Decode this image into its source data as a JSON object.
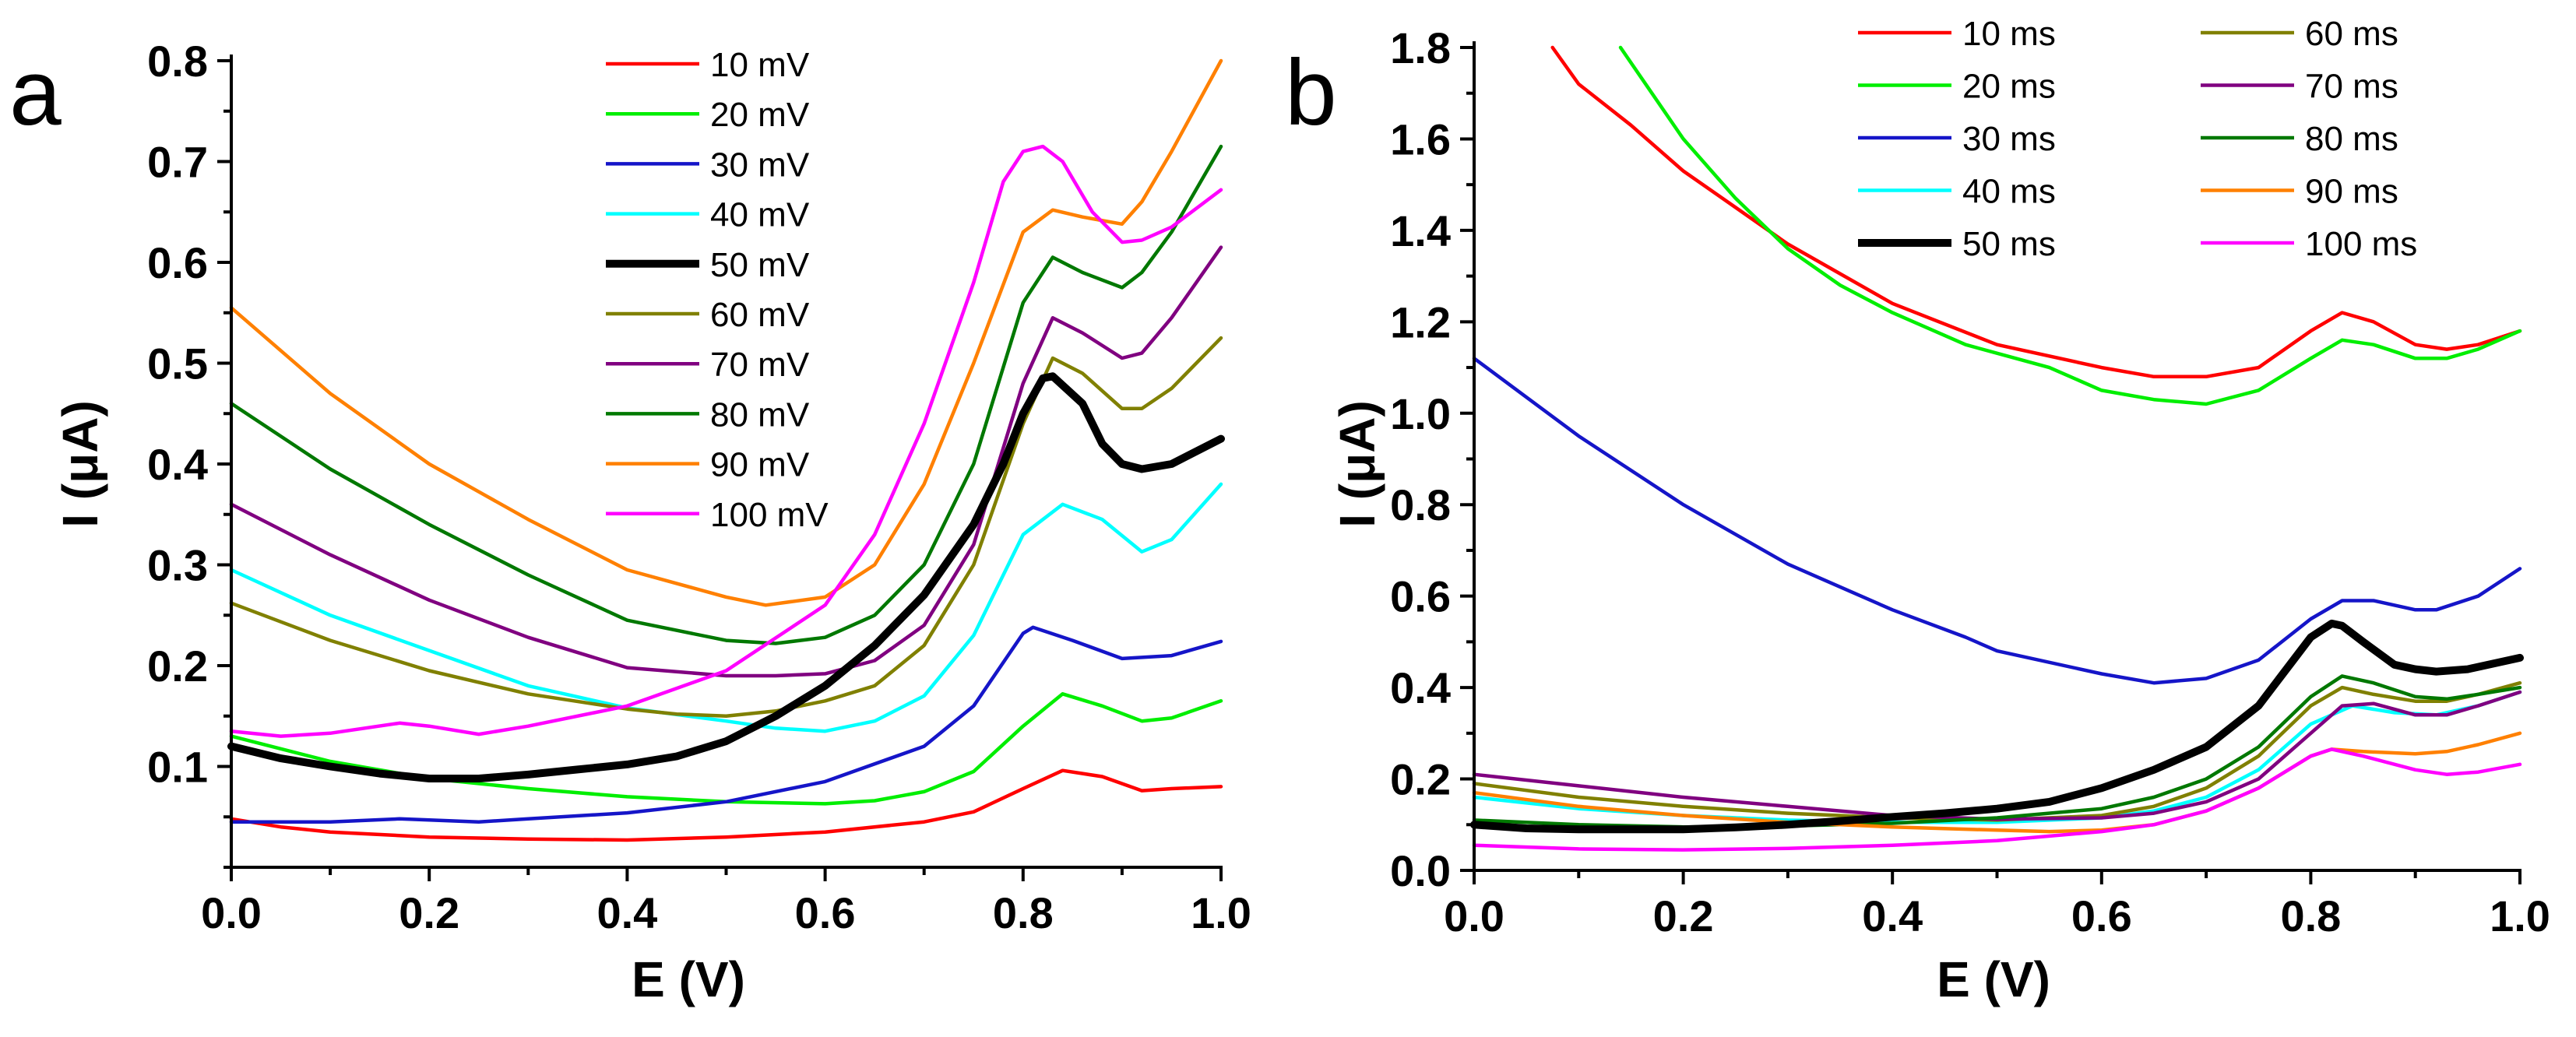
{
  "chart_data": [
    {
      "type": "line",
      "panel_label": "a",
      "xlabel": "E (V)",
      "ylabel": "I (μA)",
      "xlim": [
        0.0,
        1.0
      ],
      "ylim": [
        0.0,
        0.8
      ],
      "xticks": [
        0.0,
        0.2,
        0.4,
        0.6,
        0.8,
        1.0
      ],
      "xtick_labels": [
        "0.0",
        "0.2",
        "0.4",
        "0.6",
        "0.8",
        "1.0"
      ],
      "yticks": [
        0.1,
        0.2,
        0.3,
        0.4,
        0.5,
        0.6,
        0.7,
        0.8
      ],
      "ytick_labels": [
        "0.1",
        "0.2",
        "0.3",
        "0.4",
        "0.5",
        "0.6",
        "0.7",
        "0.8"
      ],
      "legend_position": "top-center",
      "series": [
        {
          "name": "10 mV",
          "color": "#ff0000",
          "bold": false,
          "x": [
            0,
            0.05,
            0.1,
            0.2,
            0.3,
            0.4,
            0.5,
            0.6,
            0.7,
            0.75,
            0.8,
            0.84,
            0.88,
            0.92,
            0.95,
            1.0
          ],
          "y": [
            0.048,
            0.04,
            0.035,
            0.03,
            0.028,
            0.027,
            0.03,
            0.035,
            0.045,
            0.055,
            0.078,
            0.096,
            0.09,
            0.076,
            0.078,
            0.08
          ]
        },
        {
          "name": "20 mV",
          "color": "#00ee00",
          "bold": false,
          "x": [
            0,
            0.1,
            0.2,
            0.3,
            0.4,
            0.5,
            0.6,
            0.65,
            0.7,
            0.75,
            0.8,
            0.84,
            0.88,
            0.92,
            0.95,
            1.0
          ],
          "y": [
            0.13,
            0.105,
            0.088,
            0.078,
            0.07,
            0.065,
            0.063,
            0.066,
            0.075,
            0.095,
            0.14,
            0.172,
            0.16,
            0.145,
            0.148,
            0.165
          ]
        },
        {
          "name": "30 mV",
          "color": "#1515c8",
          "bold": false,
          "x": [
            0,
            0.1,
            0.17,
            0.25,
            0.3,
            0.4,
            0.5,
            0.6,
            0.7,
            0.75,
            0.8,
            0.81,
            0.85,
            0.9,
            0.95,
            1.0
          ],
          "y": [
            0.045,
            0.045,
            0.048,
            0.045,
            0.048,
            0.054,
            0.065,
            0.085,
            0.12,
            0.16,
            0.232,
            0.238,
            0.225,
            0.207,
            0.21,
            0.224
          ]
        },
        {
          "name": "40 mV",
          "color": "#00ffff",
          "bold": false,
          "x": [
            0,
            0.1,
            0.2,
            0.3,
            0.4,
            0.5,
            0.55,
            0.6,
            0.65,
            0.7,
            0.75,
            0.8,
            0.84,
            0.88,
            0.92,
            0.95,
            1.0
          ],
          "y": [
            0.295,
            0.25,
            0.215,
            0.18,
            0.158,
            0.145,
            0.138,
            0.135,
            0.145,
            0.17,
            0.23,
            0.33,
            0.36,
            0.345,
            0.313,
            0.325,
            0.38
          ]
        },
        {
          "name": "50 mV",
          "color": "#000000",
          "bold": true,
          "x": [
            0,
            0.05,
            0.1,
            0.15,
            0.2,
            0.25,
            0.3,
            0.35,
            0.4,
            0.45,
            0.5,
            0.55,
            0.6,
            0.65,
            0.7,
            0.75,
            0.78,
            0.8,
            0.82,
            0.83,
            0.86,
            0.88,
            0.9,
            0.92,
            0.95,
            1.0
          ],
          "y": [
            0.12,
            0.108,
            0.1,
            0.093,
            0.088,
            0.088,
            0.092,
            0.097,
            0.102,
            0.11,
            0.125,
            0.15,
            0.18,
            0.22,
            0.27,
            0.34,
            0.4,
            0.45,
            0.485,
            0.487,
            0.46,
            0.42,
            0.4,
            0.395,
            0.4,
            0.425
          ]
        },
        {
          "name": "60 mV",
          "color": "#808000",
          "bold": false,
          "x": [
            0,
            0.1,
            0.2,
            0.3,
            0.4,
            0.45,
            0.5,
            0.55,
            0.6,
            0.65,
            0.7,
            0.75,
            0.8,
            0.83,
            0.86,
            0.9,
            0.92,
            0.95,
            1.0
          ],
          "y": [
            0.262,
            0.225,
            0.195,
            0.172,
            0.157,
            0.152,
            0.15,
            0.155,
            0.165,
            0.18,
            0.22,
            0.3,
            0.44,
            0.505,
            0.49,
            0.455,
            0.455,
            0.475,
            0.525
          ]
        },
        {
          "name": "70 mV",
          "color": "#800080",
          "bold": false,
          "x": [
            0,
            0.1,
            0.2,
            0.3,
            0.4,
            0.5,
            0.55,
            0.6,
            0.65,
            0.7,
            0.75,
            0.8,
            0.83,
            0.86,
            0.9,
            0.92,
            0.95,
            1.0
          ],
          "y": [
            0.36,
            0.31,
            0.265,
            0.228,
            0.198,
            0.19,
            0.19,
            0.192,
            0.205,
            0.24,
            0.32,
            0.48,
            0.545,
            0.53,
            0.505,
            0.51,
            0.545,
            0.615
          ]
        },
        {
          "name": "80 mV",
          "color": "#007800",
          "bold": false,
          "x": [
            0,
            0.1,
            0.2,
            0.3,
            0.4,
            0.5,
            0.55,
            0.6,
            0.65,
            0.7,
            0.75,
            0.8,
            0.83,
            0.86,
            0.9,
            0.92,
            0.95,
            1.0
          ],
          "y": [
            0.46,
            0.395,
            0.34,
            0.29,
            0.245,
            0.225,
            0.222,
            0.228,
            0.25,
            0.3,
            0.4,
            0.56,
            0.605,
            0.59,
            0.575,
            0.59,
            0.63,
            0.715
          ]
        },
        {
          "name": "90 mV",
          "color": "#ff8000",
          "bold": false,
          "x": [
            0,
            0.1,
            0.2,
            0.3,
            0.4,
            0.5,
            0.54,
            0.6,
            0.65,
            0.7,
            0.75,
            0.8,
            0.83,
            0.86,
            0.9,
            0.92,
            0.95,
            1.0
          ],
          "y": [
            0.555,
            0.47,
            0.4,
            0.345,
            0.295,
            0.268,
            0.26,
            0.268,
            0.3,
            0.38,
            0.5,
            0.63,
            0.652,
            0.645,
            0.638,
            0.66,
            0.71,
            0.8
          ]
        },
        {
          "name": "100 mV",
          "color": "#ff00ff",
          "bold": false,
          "x": [
            0,
            0.05,
            0.1,
            0.17,
            0.2,
            0.25,
            0.3,
            0.4,
            0.5,
            0.6,
            0.65,
            0.7,
            0.75,
            0.78,
            0.8,
            0.82,
            0.84,
            0.87,
            0.9,
            0.92,
            0.95,
            1.0
          ],
          "y": [
            0.135,
            0.13,
            0.133,
            0.143,
            0.14,
            0.132,
            0.14,
            0.16,
            0.195,
            0.26,
            0.33,
            0.44,
            0.58,
            0.68,
            0.71,
            0.715,
            0.7,
            0.65,
            0.62,
            0.622,
            0.635,
            0.672
          ]
        }
      ]
    },
    {
      "type": "line",
      "panel_label": "b",
      "xlabel": "E (V)",
      "ylabel": "I (μA)",
      "xlim": [
        0.0,
        1.0
      ],
      "ylim": [
        0.0,
        1.8
      ],
      "xticks": [
        0.0,
        0.2,
        0.4,
        0.6,
        0.8,
        1.0
      ],
      "xtick_labels": [
        "0.0",
        "0.2",
        "0.4",
        "0.6",
        "0.8",
        "1.0"
      ],
      "yticks": [
        0.0,
        0.2,
        0.4,
        0.6,
        0.8,
        1.0,
        1.2,
        1.4,
        1.6,
        1.8
      ],
      "ytick_labels": [
        "0.0",
        "0.2",
        "0.4",
        "0.6",
        "0.8",
        "1.0",
        "1.2",
        "1.4",
        "1.6",
        "1.8"
      ],
      "legend_position": "top-center",
      "series": [
        {
          "name": "10 ms",
          "color": "#ff0000",
          "bold": false,
          "x": [
            0.075,
            0.1,
            0.15,
            0.2,
            0.25,
            0.3,
            0.4,
            0.5,
            0.6,
            0.65,
            0.7,
            0.75,
            0.8,
            0.83,
            0.86,
            0.9,
            0.93,
            0.96,
            1.0
          ],
          "y": [
            1.8,
            1.72,
            1.63,
            1.53,
            1.45,
            1.37,
            1.24,
            1.15,
            1.1,
            1.08,
            1.08,
            1.1,
            1.18,
            1.22,
            1.2,
            1.15,
            1.14,
            1.15,
            1.18
          ]
        },
        {
          "name": "20 ms",
          "color": "#00ee00",
          "bold": false,
          "x": [
            0.14,
            0.2,
            0.25,
            0.3,
            0.35,
            0.4,
            0.47,
            0.55,
            0.6,
            0.65,
            0.7,
            0.75,
            0.8,
            0.83,
            0.86,
            0.9,
            0.93,
            0.96,
            1.0
          ],
          "y": [
            1.8,
            1.6,
            1.47,
            1.36,
            1.28,
            1.22,
            1.15,
            1.1,
            1.05,
            1.03,
            1.02,
            1.05,
            1.12,
            1.16,
            1.15,
            1.12,
            1.12,
            1.14,
            1.18
          ]
        },
        {
          "name": "30 ms",
          "color": "#1515c8",
          "bold": false,
          "x": [
            0,
            0.1,
            0.2,
            0.3,
            0.4,
            0.47,
            0.5,
            0.6,
            0.65,
            0.7,
            0.75,
            0.8,
            0.83,
            0.86,
            0.9,
            0.92,
            0.96,
            1.0
          ],
          "y": [
            1.12,
            0.95,
            0.8,
            0.67,
            0.57,
            0.51,
            0.48,
            0.43,
            0.41,
            0.42,
            0.46,
            0.55,
            0.59,
            0.59,
            0.57,
            0.57,
            0.6,
            0.66
          ]
        },
        {
          "name": "40 ms",
          "color": "#00ffff",
          "bold": false,
          "x": [
            0,
            0.1,
            0.2,
            0.3,
            0.4,
            0.5,
            0.6,
            0.65,
            0.7,
            0.75,
            0.8,
            0.84,
            0.88,
            0.92,
            0.96,
            1.0
          ],
          "y": [
            0.16,
            0.135,
            0.12,
            0.11,
            0.105,
            0.105,
            0.115,
            0.13,
            0.16,
            0.22,
            0.32,
            0.36,
            0.345,
            0.34,
            0.36,
            0.39
          ]
        },
        {
          "name": "50 ms",
          "color": "#000000",
          "bold": true,
          "x": [
            0,
            0.05,
            0.1,
            0.15,
            0.2,
            0.25,
            0.3,
            0.35,
            0.4,
            0.45,
            0.5,
            0.55,
            0.6,
            0.65,
            0.7,
            0.75,
            0.78,
            0.8,
            0.82,
            0.83,
            0.85,
            0.88,
            0.9,
            0.92,
            0.95,
            1.0
          ],
          "y": [
            0.1,
            0.092,
            0.09,
            0.09,
            0.09,
            0.094,
            0.1,
            0.108,
            0.117,
            0.125,
            0.135,
            0.15,
            0.18,
            0.22,
            0.27,
            0.36,
            0.45,
            0.51,
            0.54,
            0.535,
            0.5,
            0.45,
            0.44,
            0.435,
            0.44,
            0.465
          ]
        },
        {
          "name": "60 ms",
          "color": "#808000",
          "bold": false,
          "x": [
            0,
            0.1,
            0.2,
            0.3,
            0.4,
            0.5,
            0.6,
            0.65,
            0.7,
            0.75,
            0.8,
            0.83,
            0.86,
            0.9,
            0.93,
            0.96,
            1.0
          ],
          "y": [
            0.19,
            0.16,
            0.14,
            0.125,
            0.115,
            0.11,
            0.12,
            0.14,
            0.18,
            0.25,
            0.36,
            0.4,
            0.385,
            0.37,
            0.37,
            0.385,
            0.41
          ]
        },
        {
          "name": "70 ms",
          "color": "#800080",
          "bold": false,
          "x": [
            0,
            0.1,
            0.2,
            0.3,
            0.4,
            0.5,
            0.6,
            0.65,
            0.7,
            0.75,
            0.8,
            0.83,
            0.86,
            0.9,
            0.93,
            0.96,
            1.0
          ],
          "y": [
            0.21,
            0.185,
            0.16,
            0.14,
            0.12,
            0.112,
            0.115,
            0.125,
            0.15,
            0.2,
            0.3,
            0.36,
            0.365,
            0.34,
            0.34,
            0.36,
            0.39
          ]
        },
        {
          "name": "80 ms",
          "color": "#007800",
          "bold": false,
          "x": [
            0,
            0.1,
            0.2,
            0.3,
            0.4,
            0.5,
            0.6,
            0.65,
            0.7,
            0.75,
            0.8,
            0.83,
            0.86,
            0.9,
            0.93,
            0.96,
            1.0
          ],
          "y": [
            0.11,
            0.1,
            0.095,
            0.097,
            0.103,
            0.115,
            0.135,
            0.16,
            0.2,
            0.27,
            0.38,
            0.425,
            0.41,
            0.38,
            0.375,
            0.385,
            0.4
          ]
        },
        {
          "name": "90 ms",
          "color": "#ff8000",
          "bold": false,
          "x": [
            0,
            0.1,
            0.2,
            0.3,
            0.4,
            0.5,
            0.55,
            0.6,
            0.65,
            0.7,
            0.75,
            0.8,
            0.82,
            0.85,
            0.9,
            0.93,
            0.96,
            1.0
          ],
          "y": [
            0.17,
            0.14,
            0.12,
            0.105,
            0.095,
            0.088,
            0.085,
            0.088,
            0.1,
            0.13,
            0.18,
            0.25,
            0.265,
            0.26,
            0.255,
            0.26,
            0.275,
            0.3
          ]
        },
        {
          "name": "100 ms",
          "color": "#ff00ff",
          "bold": false,
          "x": [
            0,
            0.1,
            0.2,
            0.3,
            0.4,
            0.5,
            0.6,
            0.65,
            0.7,
            0.75,
            0.8,
            0.82,
            0.85,
            0.9,
            0.93,
            0.96,
            1.0
          ],
          "y": [
            0.055,
            0.047,
            0.045,
            0.048,
            0.055,
            0.065,
            0.085,
            0.1,
            0.13,
            0.18,
            0.25,
            0.265,
            0.25,
            0.22,
            0.21,
            0.215,
            0.232
          ]
        }
      ]
    }
  ]
}
